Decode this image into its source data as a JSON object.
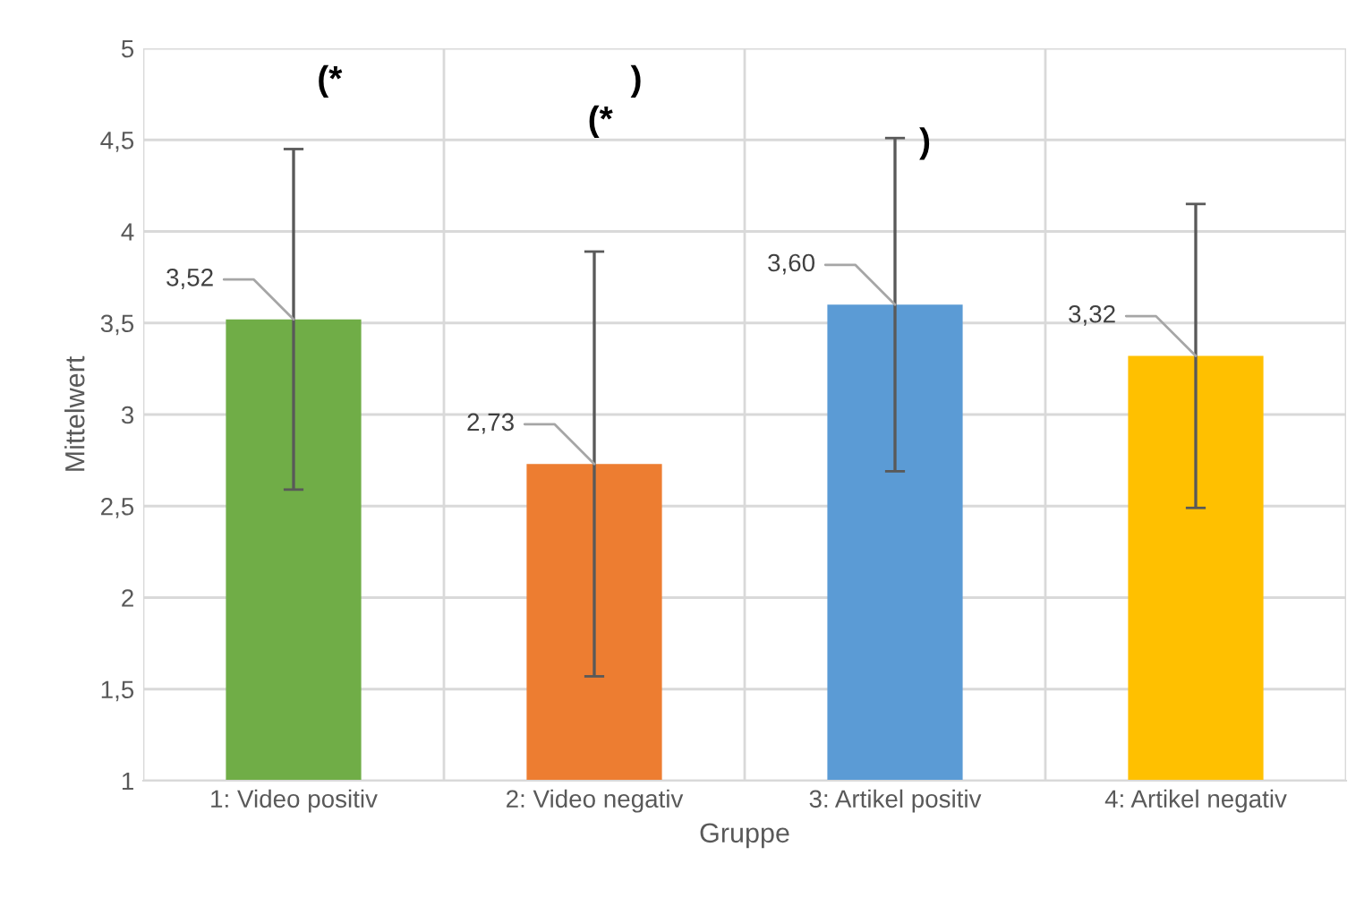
{
  "chart_data": {
    "type": "bar",
    "xlabel": "Gruppe",
    "ylabel": "Mittelwert",
    "categories": [
      "1: Video positiv",
      "2: Video negativ",
      "3: Artikel positiv",
      "4: Artikel negativ"
    ],
    "values": [
      3.52,
      2.73,
      3.6,
      3.32
    ],
    "colors": [
      "#70ad47",
      "#ed7d31",
      "#5b9bd5",
      "#ffc000"
    ],
    "errors": [
      0.93,
      1.16,
      0.91,
      0.83
    ],
    "value_labels": [
      "3,52",
      "2,73",
      "3,60",
      "3,32"
    ],
    "ylim": [
      1,
      5
    ],
    "yticks": [
      1,
      {
        "value": 1.5,
        "label": "1,5"
      },
      2,
      {
        "value": 2.5,
        "label": "2,5"
      },
      3,
      {
        "value": 3.5,
        "label": "3,5"
      },
      4,
      {
        "value": 4.5,
        "label": "4,5"
      },
      5
    ],
    "grid": true,
    "legend": false,
    "annotations": [
      "(*",
      ")",
      "(*",
      ")"
    ]
  }
}
